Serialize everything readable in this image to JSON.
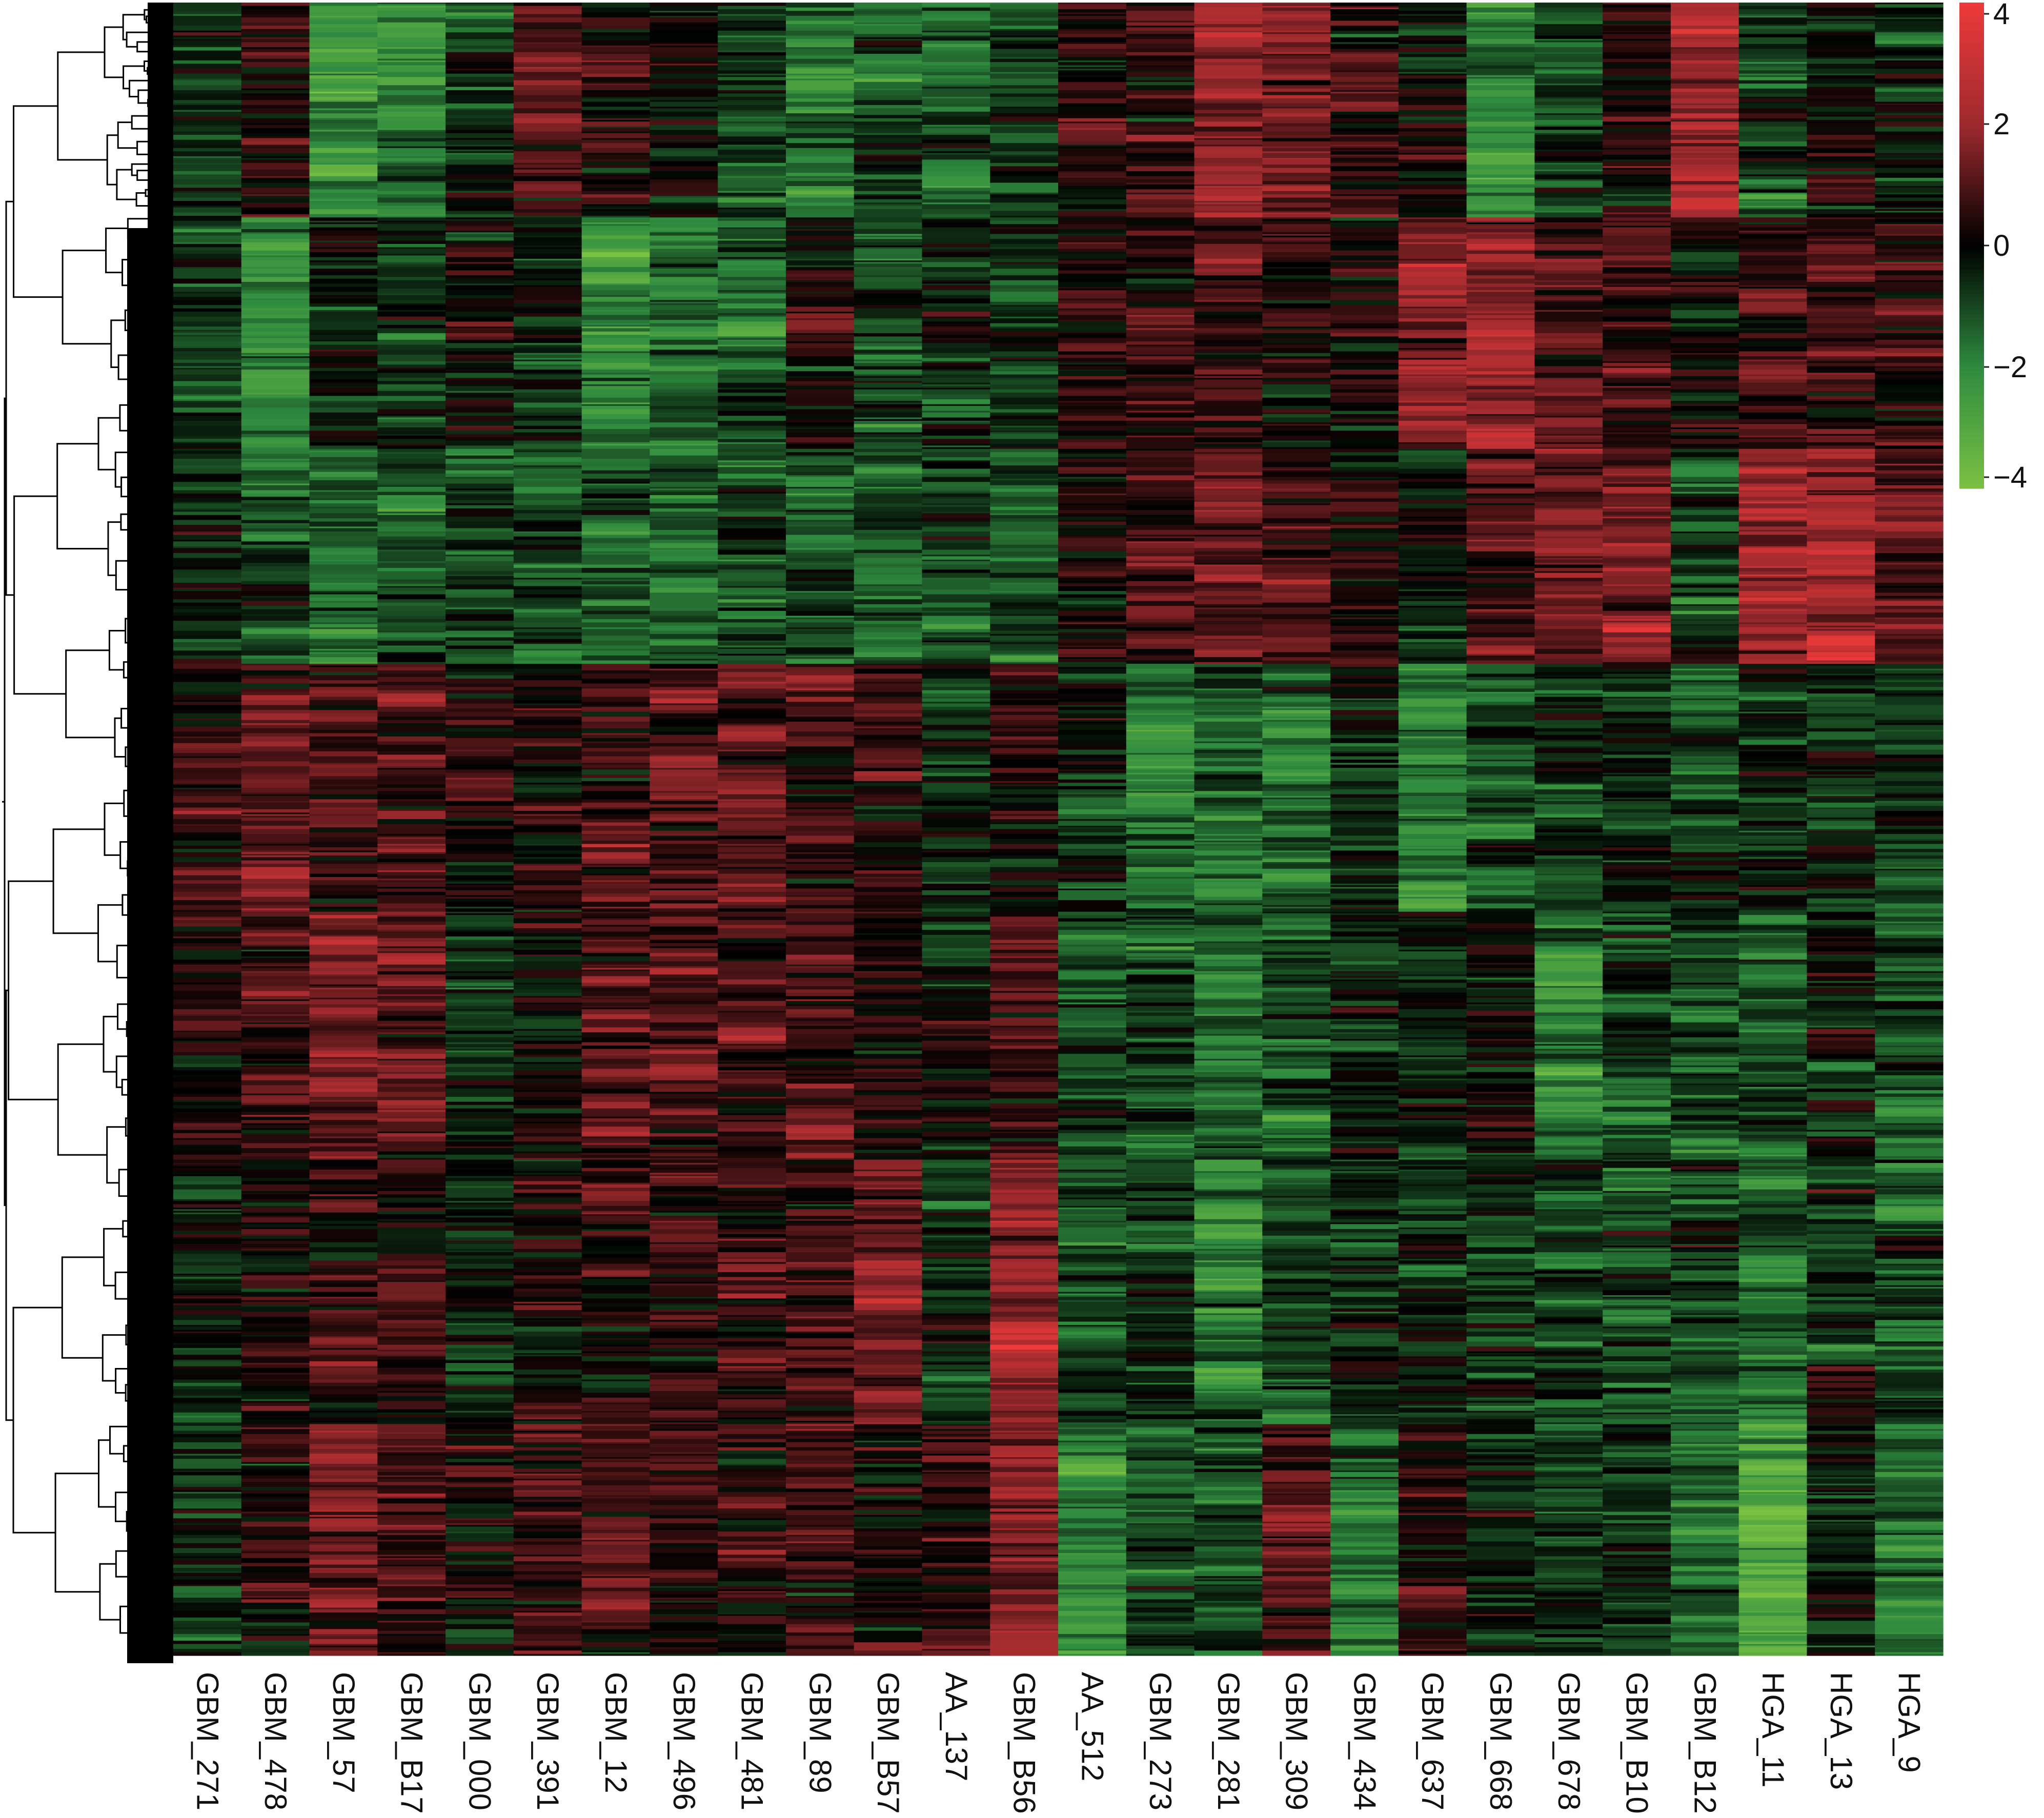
{
  "chart_data": {
    "type": "heatmap",
    "title": "",
    "xlabel": "",
    "ylabel": "",
    "row_dendrogram": true,
    "row_count_approx": 1000,
    "columns": [
      "GBM_271",
      "GBM_478",
      "GBM_57",
      "GBM_B17",
      "GBM_000",
      "GBM_391",
      "GBM_12",
      "GBM_496",
      "GBM_481",
      "GBM_89",
      "GBM_B57",
      "AA_137",
      "GBM_B56",
      "AA_512",
      "GBM_273",
      "GBM_281",
      "GBM_309",
      "GBM_434",
      "GBM_637",
      "GBM_668",
      "GBM_678",
      "GBM_B10",
      "GBM_B12",
      "HGA_11",
      "HGA_13",
      "HGA_9"
    ],
    "row_segments": [
      {
        "label_order": 1,
        "rows": 130,
        "values": [
          -0.5,
          0.5,
          -2.5,
          -1.8,
          -0.8,
          1.0,
          0.0,
          -0.3,
          -1.0,
          -1.8,
          -1.0,
          -1.2,
          -0.8,
          0.3,
          0.6,
          1.8,
          1.5,
          0.8,
          0.0,
          -2.0,
          -1.0,
          0.0,
          2.0,
          -0.8,
          0.0,
          -0.3
        ]
      },
      {
        "label_order": 2,
        "rows": 140,
        "values": [
          -0.8,
          -2.2,
          -0.5,
          -0.6,
          0.2,
          -0.5,
          -2.0,
          -1.8,
          -1.4,
          0.2,
          -1.2,
          -0.5,
          -0.8,
          0.3,
          0.5,
          0.8,
          0.5,
          0.3,
          1.8,
          2.0,
          1.2,
          0.8,
          0.3,
          0.5,
          0.8,
          0.5
        ]
      },
      {
        "label_order": 3,
        "rows": 130,
        "values": [
          -0.5,
          -1.2,
          -1.5,
          -1.0,
          -0.8,
          -1.0,
          -1.0,
          -1.4,
          -1.2,
          -1.0,
          -1.2,
          -0.8,
          -1.2,
          0.2,
          0.5,
          1.5,
          0.8,
          0.2,
          -0.3,
          0.5,
          1.5,
          1.5,
          -1.0,
          2.2,
          2.5,
          1.0
        ]
      },
      {
        "label_order": 4,
        "rows": 150,
        "values": [
          0.5,
          1.2,
          1.0,
          0.8,
          0.2,
          0.5,
          0.8,
          1.2,
          1.0,
          0.8,
          0.5,
          -0.3,
          0.3,
          -0.3,
          -2.2,
          -1.5,
          -1.8,
          -0.6,
          -1.8,
          -1.0,
          -0.8,
          -0.5,
          -1.0,
          -0.6,
          -0.5,
          -0.8
        ]
      },
      {
        "label_order": 5,
        "rows": 150,
        "values": [
          0.3,
          1.0,
          1.5,
          1.2,
          -0.5,
          0.5,
          1.0,
          0.8,
          0.8,
          1.0,
          0.5,
          -0.3,
          0.8,
          -0.8,
          -1.0,
          -1.5,
          -1.2,
          -0.5,
          -0.6,
          0.2,
          -2.0,
          -0.8,
          -1.2,
          -1.5,
          -0.3,
          -1.0
        ]
      },
      {
        "label_order": 6,
        "rows": 160,
        "values": [
          -0.3,
          0.3,
          0.5,
          0.3,
          -0.5,
          0.2,
          0.5,
          0.3,
          0.5,
          0.5,
          1.5,
          -0.5,
          2.0,
          -1.2,
          -1.0,
          -2.0,
          -1.2,
          -0.5,
          -0.5,
          -0.8,
          -1.0,
          -1.2,
          -0.8,
          -1.5,
          -0.5,
          -1.2
        ]
      },
      {
        "label_order": 7,
        "rows": 140,
        "values": [
          -0.5,
          0.3,
          1.5,
          0.8,
          0.3,
          0.8,
          1.0,
          0.5,
          0.5,
          0.8,
          0.3,
          0.5,
          1.5,
          -2.0,
          -1.0,
          -1.2,
          1.0,
          -1.5,
          0.5,
          -0.3,
          -0.5,
          -0.8,
          -1.5,
          -3.0,
          -0.3,
          -1.5
        ]
      }
    ],
    "color_scale": {
      "min": -4,
      "max": 4,
      "ticks": [
        4,
        2,
        0,
        -2,
        -4
      ],
      "tick_labels": [
        "4",
        "2",
        "0",
        "−2",
        "−4"
      ],
      "stops": [
        {
          "value": -4,
          "color": "#7ac143"
        },
        {
          "value": -2,
          "color": "#2e8b3f"
        },
        {
          "value": 0,
          "color": "#000000"
        },
        {
          "value": 2,
          "color": "#9e2a2e"
        },
        {
          "value": 4,
          "color": "#ee3a3a"
        }
      ]
    },
    "legend_position": "top-right"
  }
}
